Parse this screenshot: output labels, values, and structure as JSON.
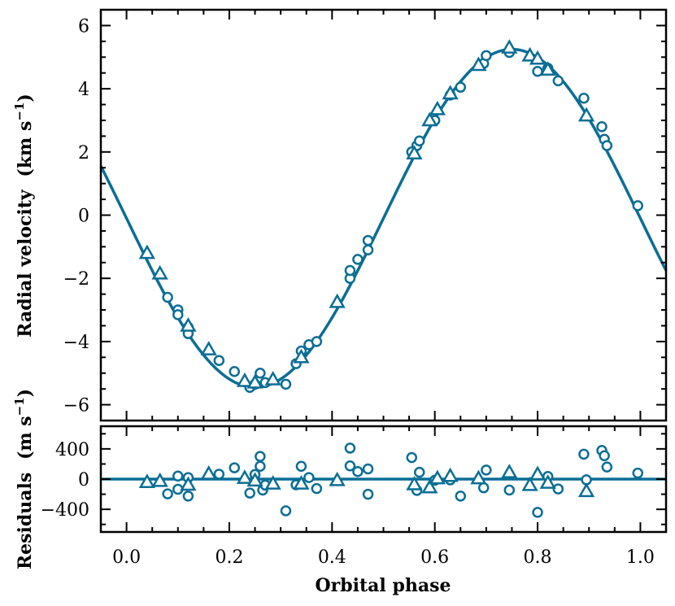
{
  "chart_data": [
    {
      "type": "scatter",
      "panel": "top",
      "xlabel": "Orbital phase",
      "ylabel_text": "Radial velocity",
      "ylabel_unit": "(km s",
      "ylabel_exp": "−1",
      "ylabel_close": ")",
      "xlim": [
        -0.05,
        1.05
      ],
      "ylim": [
        -6.5,
        6.5
      ],
      "yticks": [
        -6,
        -4,
        -2,
        0,
        2,
        4,
        6
      ],
      "ytick_labels": [
        "−6",
        "−4",
        "−2",
        "0",
        "2",
        "4",
        "6"
      ],
      "model": {
        "name": "orbit fit",
        "amplitude": 5.35,
        "offset": -0.1,
        "phase_min": 0.25
      },
      "series": [
        {
          "name": "circles",
          "marker": "circle",
          "points": [
            [
              0.08,
              -2.6
            ],
            [
              0.1,
              -3.0
            ],
            [
              0.1,
              -3.15
            ],
            [
              0.12,
              -3.55
            ],
            [
              0.12,
              -3.75
            ],
            [
              0.18,
              -4.6
            ],
            [
              0.21,
              -4.95
            ],
            [
              0.24,
              -5.45
            ],
            [
              0.25,
              -5.35
            ],
            [
              0.26,
              -5.0
            ],
            [
              0.27,
              -5.3
            ],
            [
              0.31,
              -5.35
            ],
            [
              0.33,
              -4.7
            ],
            [
              0.34,
              -4.3
            ],
            [
              0.355,
              -4.1
            ],
            [
              0.37,
              -4.0
            ],
            [
              0.435,
              -2.0
            ],
            [
              0.435,
              -1.75
            ],
            [
              0.45,
              -1.4
            ],
            [
              0.47,
              -1.1
            ],
            [
              0.47,
              -0.8
            ],
            [
              0.555,
              2.0
            ],
            [
              0.565,
              2.2
            ],
            [
              0.57,
              2.35
            ],
            [
              0.6,
              3.0
            ],
            [
              0.63,
              3.8
            ],
            [
              0.65,
              4.05
            ],
            [
              0.695,
              4.8
            ],
            [
              0.7,
              5.05
            ],
            [
              0.745,
              5.15
            ],
            [
              0.8,
              4.55
            ],
            [
              0.82,
              4.65
            ],
            [
              0.84,
              4.25
            ],
            [
              0.89,
              3.7
            ],
            [
              0.925,
              2.8
            ],
            [
              0.93,
              2.4
            ],
            [
              0.935,
              2.2
            ],
            [
              0.995,
              0.3
            ]
          ]
        },
        {
          "name": "triangles",
          "marker": "triangle",
          "points": [
            [
              0.04,
              -1.2
            ],
            [
              0.065,
              -1.85
            ],
            [
              0.12,
              -3.5
            ],
            [
              0.16,
              -4.25
            ],
            [
              0.23,
              -5.25
            ],
            [
              0.25,
              -5.3
            ],
            [
              0.285,
              -5.2
            ],
            [
              0.34,
              -4.5
            ],
            [
              0.41,
              -2.75
            ],
            [
              0.56,
              1.95
            ],
            [
              0.59,
              3.0
            ],
            [
              0.605,
              3.35
            ],
            [
              0.63,
              3.85
            ],
            [
              0.685,
              4.75
            ],
            [
              0.745,
              5.3
            ],
            [
              0.785,
              5.05
            ],
            [
              0.8,
              4.95
            ],
            [
              0.82,
              4.6
            ],
            [
              0.895,
              3.15
            ]
          ]
        }
      ]
    },
    {
      "type": "scatter",
      "panel": "bottom",
      "xlabel": "Orbital phase",
      "ylabel_text": "Residuals",
      "ylabel_unit": "(m s",
      "ylabel_exp": "−1",
      "ylabel_close": ")",
      "xlim": [
        -0.05,
        1.05
      ],
      "ylim": [
        -700,
        700
      ],
      "yticks": [
        -400,
        0,
        400
      ],
      "ytick_labels": [
        "−400",
        "0",
        "400"
      ],
      "xticks": [
        0.0,
        0.2,
        0.4,
        0.6,
        0.8,
        1.0
      ],
      "xtick_labels": [
        "0.0",
        "0.2",
        "0.4",
        "0.6",
        "0.8",
        "1.0"
      ],
      "zero_line": 0,
      "series": [
        {
          "name": "circles",
          "marker": "circle",
          "points": [
            [
              0.08,
              -195,
              30
            ],
            [
              0.1,
              40,
              40
            ],
            [
              0.1,
              -135,
              40
            ],
            [
              0.12,
              20,
              40
            ],
            [
              0.12,
              -225,
              40
            ],
            [
              0.18,
              65,
              40
            ],
            [
              0.21,
              150,
              60
            ],
            [
              0.24,
              -185,
              40
            ],
            [
              0.25,
              60,
              40
            ],
            [
              0.26,
              300,
              70
            ],
            [
              0.26,
              170,
              50
            ],
            [
              0.265,
              -145,
              40
            ],
            [
              0.27,
              -80,
              40
            ],
            [
              0.31,
              -420,
              60
            ],
            [
              0.33,
              -75,
              70
            ],
            [
              0.34,
              170,
              60
            ],
            [
              0.355,
              20,
              40
            ],
            [
              0.37,
              -125,
              40
            ],
            [
              0.435,
              410,
              60
            ],
            [
              0.435,
              175,
              40
            ],
            [
              0.45,
              100,
              40
            ],
            [
              0.47,
              135,
              60
            ],
            [
              0.47,
              -200,
              40
            ],
            [
              0.555,
              285,
              60
            ],
            [
              0.565,
              -150,
              40
            ],
            [
              0.57,
              90,
              40
            ],
            [
              0.6,
              -15,
              40
            ],
            [
              0.63,
              -10,
              40
            ],
            [
              0.65,
              -225,
              60
            ],
            [
              0.695,
              -115,
              40
            ],
            [
              0.7,
              120,
              40
            ],
            [
              0.745,
              -145,
              40
            ],
            [
              0.8,
              -440,
              60
            ],
            [
              0.82,
              35,
              40
            ],
            [
              0.84,
              -130,
              40
            ],
            [
              0.89,
              330,
              60
            ],
            [
              0.895,
              -10,
              70
            ],
            [
              0.925,
              380,
              60
            ],
            [
              0.93,
              310,
              50
            ],
            [
              0.935,
              160,
              40
            ],
            [
              0.995,
              80,
              70
            ]
          ]
        },
        {
          "name": "triangles",
          "marker": "triangle",
          "points": [
            [
              0.04,
              -40,
              30
            ],
            [
              0.065,
              -25,
              30
            ],
            [
              0.12,
              -75,
              30
            ],
            [
              0.16,
              70,
              30
            ],
            [
              0.23,
              15,
              30
            ],
            [
              0.25,
              -20,
              30
            ],
            [
              0.285,
              -60,
              30
            ],
            [
              0.34,
              -60,
              30
            ],
            [
              0.41,
              -15,
              30
            ],
            [
              0.56,
              -70,
              30
            ],
            [
              0.59,
              -110,
              30
            ],
            [
              0.605,
              10,
              30
            ],
            [
              0.63,
              40,
              30
            ],
            [
              0.685,
              10,
              30
            ],
            [
              0.745,
              90,
              30
            ],
            [
              0.785,
              -80,
              30
            ],
            [
              0.8,
              65,
              30
            ],
            [
              0.82,
              -50,
              30
            ],
            [
              0.895,
              -160,
              30
            ]
          ]
        }
      ]
    }
  ],
  "colors": {
    "series": "#0a6e95",
    "axes": "#000000",
    "background": "#ffffff"
  }
}
